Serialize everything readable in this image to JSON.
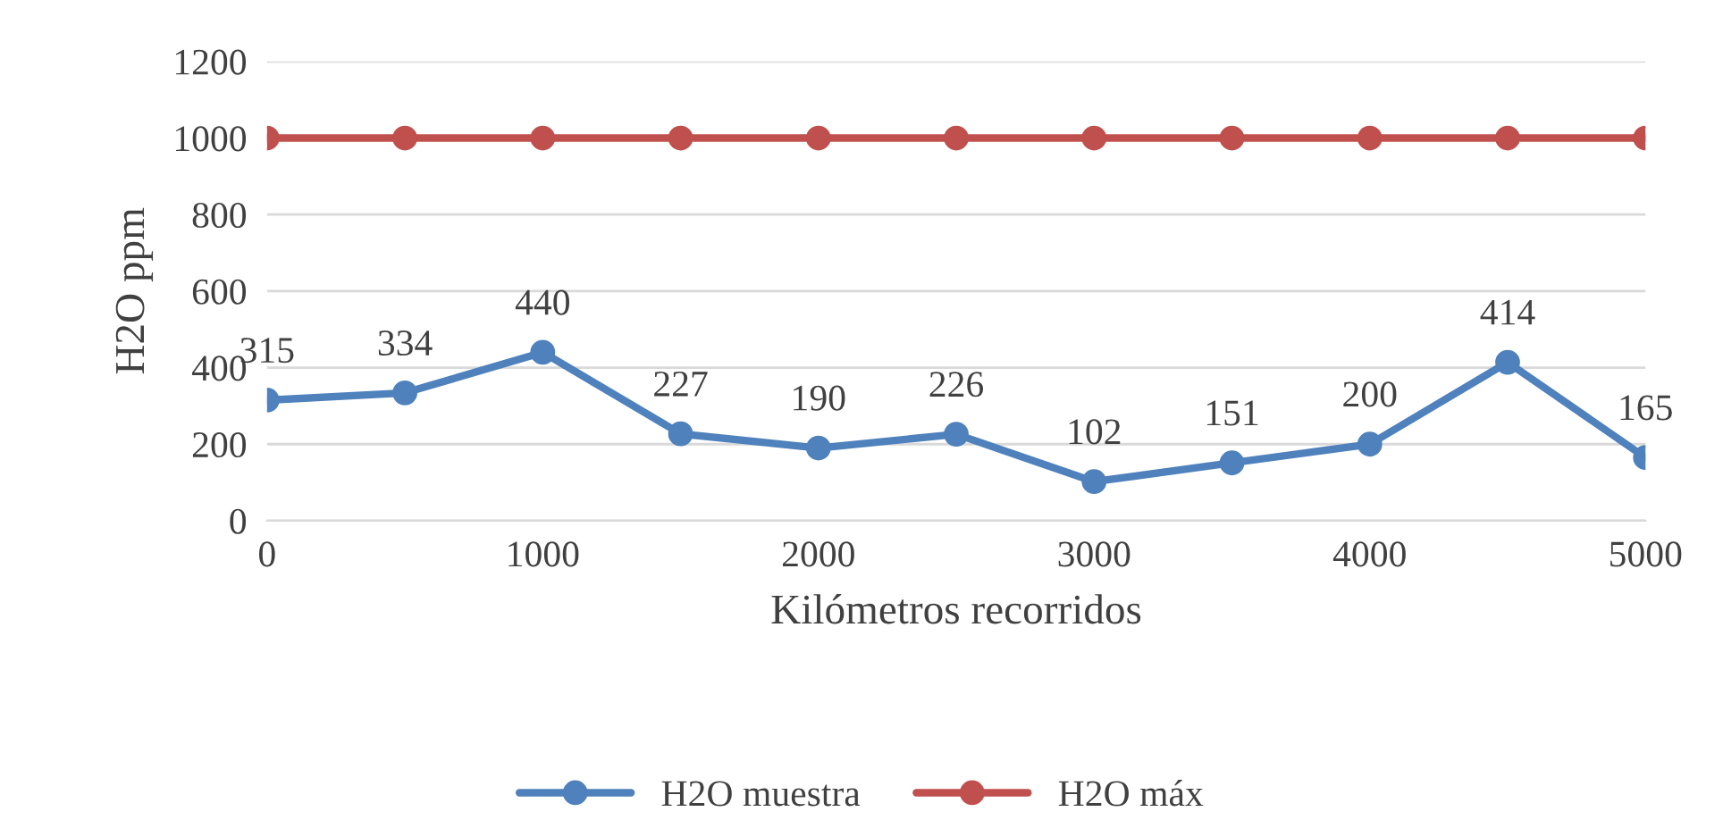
{
  "chart_data": {
    "type": "line",
    "xlabel": "Kilómetros recorridos",
    "ylabel": "H2O ppm",
    "x": [
      0,
      500,
      1000,
      1500,
      2000,
      2500,
      3000,
      3500,
      4000,
      4500,
      5000
    ],
    "series": [
      {
        "name": "H2O muestra",
        "color": "#4f81bd",
        "values": [
          315,
          334,
          440,
          227,
          190,
          226,
          102,
          151,
          200,
          414,
          165
        ],
        "value_labels": [
          "315",
          "334",
          "440",
          "227",
          "190",
          "226",
          "102",
          "151",
          "200",
          "414",
          "165"
        ]
      },
      {
        "name": "H2O máx",
        "color": "#c0504d",
        "values": [
          1000,
          1000,
          1000,
          1000,
          1000,
          1000,
          1000,
          1000,
          1000,
          1000,
          1000
        ]
      }
    ],
    "xlim": [
      0,
      5000
    ],
    "xticks": [
      0,
      1000,
      2000,
      3000,
      4000,
      5000
    ],
    "ylim": [
      0,
      1200
    ],
    "yticks": [
      0,
      200,
      400,
      600,
      800,
      1000,
      1200
    ],
    "grid": "y",
    "legend": "bottom",
    "marker": "circle",
    "line_style": "solid"
  }
}
